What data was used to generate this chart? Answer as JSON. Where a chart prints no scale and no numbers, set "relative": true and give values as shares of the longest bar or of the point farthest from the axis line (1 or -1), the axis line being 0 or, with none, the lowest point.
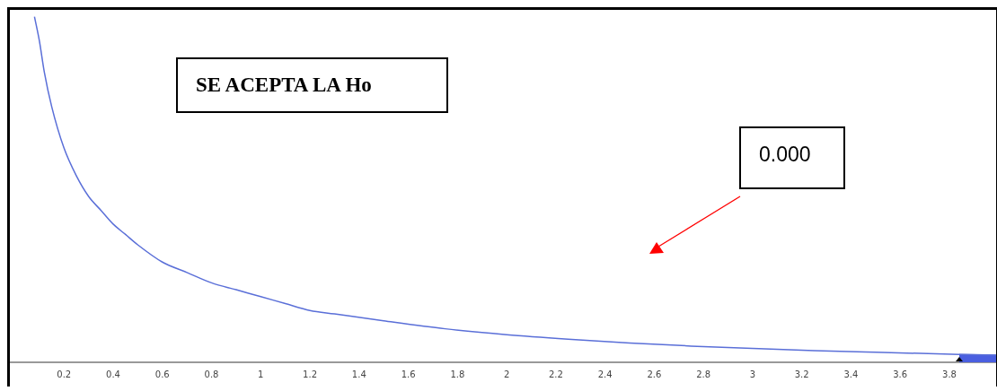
{
  "chart_data": {
    "type": "line",
    "relative": true,
    "xlim": [
      -0.02,
      3.99
    ],
    "xticks": [
      0.2,
      0.4,
      0.6,
      0.8,
      1,
      1.2,
      1.4,
      1.6,
      1.8,
      2,
      2.2,
      2.4,
      2.6,
      2.8,
      3,
      3.2,
      3.4,
      3.6,
      3.8
    ],
    "series": [
      {
        "color": "#5a6fd8",
        "x": [
          0.08,
          0.1,
          0.12,
          0.15,
          0.2,
          0.25,
          0.3,
          0.35,
          0.4,
          0.45,
          0.5,
          0.6,
          0.7,
          0.8,
          0.9,
          1,
          1.1,
          1.2,
          1.3,
          1.5,
          1.75,
          2,
          2.25,
          2.5,
          2.75,
          3,
          3.25,
          3.5,
          3.84,
          3.99
        ],
        "values": [
          1,
          0.93,
          0.84,
          0.74,
          0.62,
          0.54,
          0.48,
          0.44,
          0.4,
          0.37,
          0.34,
          0.29,
          0.26,
          0.23,
          0.21,
          0.19,
          0.17,
          0.15,
          0.14,
          0.12,
          0.097,
          0.08,
          0.067,
          0.056,
          0.047,
          0.04,
          0.034,
          0.029,
          0.023,
          0.021
        ]
      },
      {
        "type": "area",
        "color": "#4a5fe0",
        "x": [
          3.84,
          3.99
        ],
        "values": [
          0.023,
          0.021
        ]
      }
    ],
    "annotations": [
      "SE ACEPTA LA Ho",
      "0.000"
    ],
    "grid": false,
    "legend": false,
    "marker": "none"
  }
}
